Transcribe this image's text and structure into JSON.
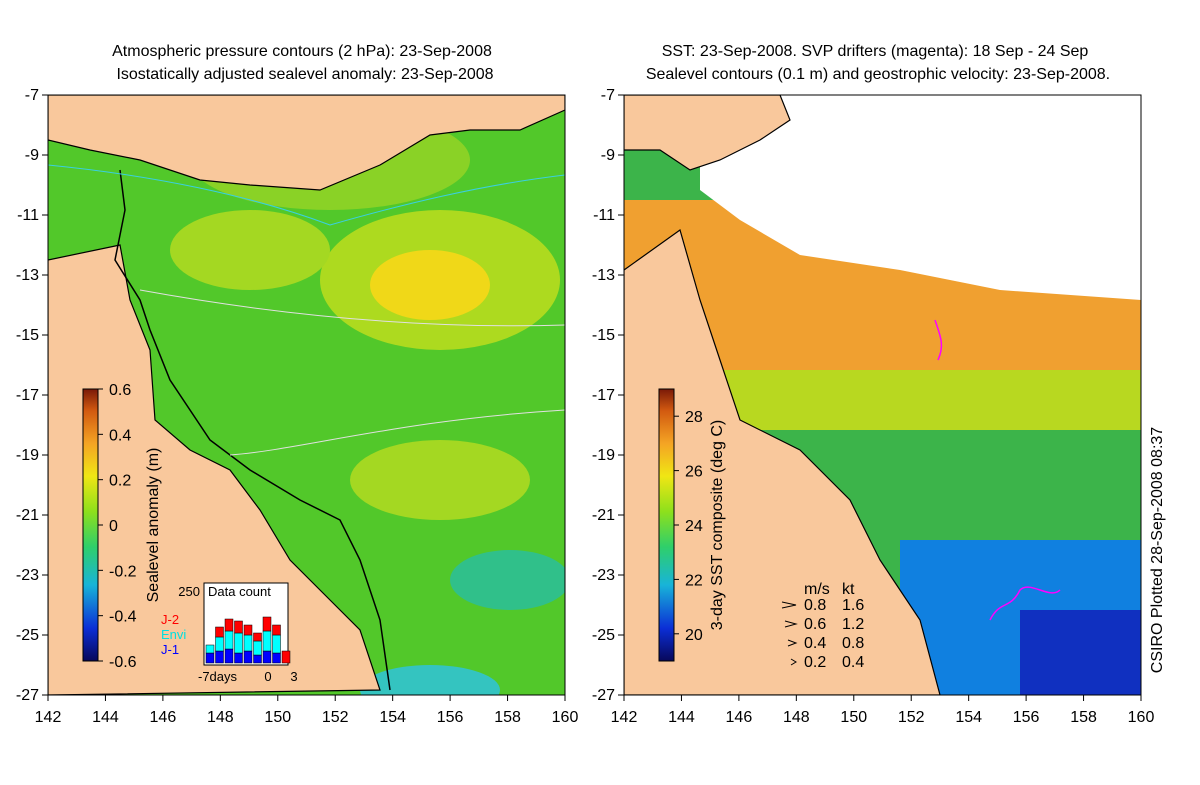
{
  "left_panel": {
    "title_line1": "Atmospheric pressure contours (2 hPa): 23-Sep-2008",
    "title_line2": "Isostatically adjusted sealevel anomaly: 23-Sep-2008",
    "y_ticks": [
      "-7",
      "-9",
      "-11",
      "-13",
      "-15",
      "-17",
      "-19",
      "-21",
      "-23",
      "-25",
      "-27"
    ],
    "x_ticks": [
      "142",
      "144",
      "146",
      "148",
      "150",
      "152",
      "154",
      "156",
      "158",
      "160"
    ],
    "colorbar": {
      "label": "Sealevel anomaly (m)",
      "ticks": [
        "0.6",
        "0.4",
        "0.2",
        "0",
        "-0.2",
        "-0.4",
        "-0.6"
      ],
      "range": [
        -0.6,
        0.6
      ]
    },
    "data_count": {
      "title": "Data count",
      "y_tick": "250",
      "x_tick_left": "-7days",
      "x_tick_mid": "0",
      "x_tick_right": "3",
      "legend": [
        {
          "label": "J-2",
          "color": "#ff0000"
        },
        {
          "label": "Envi",
          "color": "#00ffff"
        },
        {
          "label": "J-1",
          "color": "#0000ff"
        }
      ]
    }
  },
  "right_panel": {
    "title_line1": "SST: 23-Sep-2008. SVP drifters (magenta): 18 Sep - 24 Sep",
    "title_line2": "Sealevel contours (0.1 m) and geostrophic velocity: 23-Sep-2008.",
    "y_ticks": [
      "-7",
      "-9",
      "-11",
      "-13",
      "-15",
      "-17",
      "-19",
      "-21",
      "-23",
      "-25",
      "-27"
    ],
    "x_ticks": [
      "142",
      "144",
      "146",
      "148",
      "150",
      "152",
      "154",
      "156",
      "158",
      "160"
    ],
    "colorbar": {
      "label": "3-day SST composite (deg C)",
      "ticks": [
        "28",
        "26",
        "24",
        "22",
        "20"
      ],
      "range": [
        19,
        29
      ]
    },
    "velocity_legend": {
      "header_ms": "m/s",
      "header_kt": "kt",
      "rows": [
        {
          "ms": "0.8",
          "kt": "1.6"
        },
        {
          "ms": "0.6",
          "kt": "1.2"
        },
        {
          "ms": "0.4",
          "kt": "0.8"
        },
        {
          "ms": "0.2",
          "kt": "0.4"
        }
      ]
    },
    "credit": "CSIRO Plotted 28-Sep-2008 08:37"
  },
  "colors": {
    "land": "#f9c89c",
    "sla_background": "#52c82a",
    "sst_background": "#3cb44a",
    "cloud": "#ffffff",
    "drifter": "#ff00ff"
  }
}
